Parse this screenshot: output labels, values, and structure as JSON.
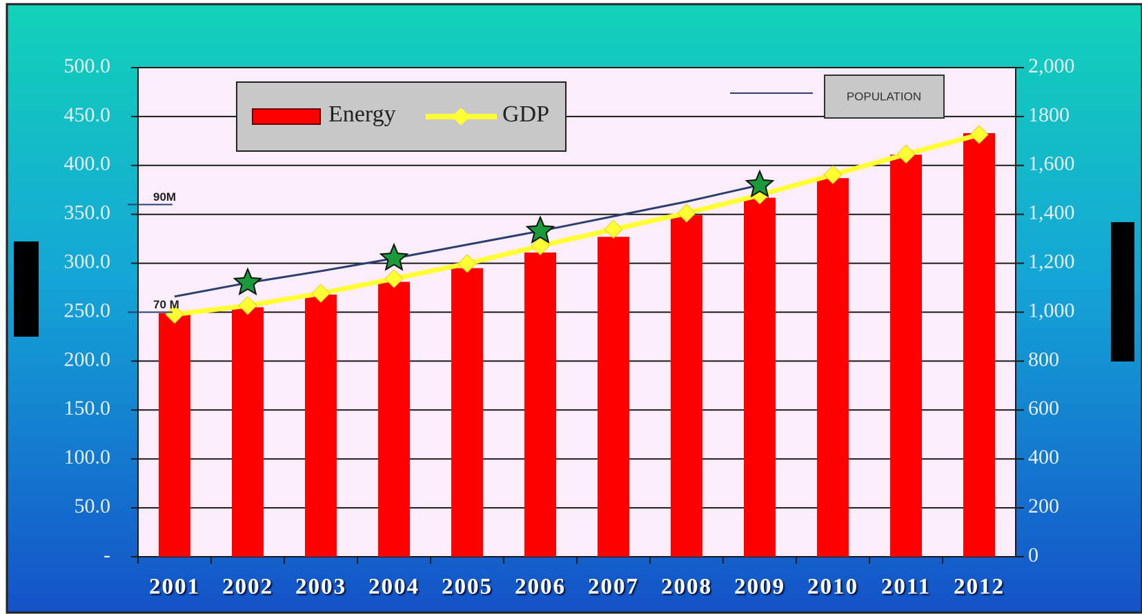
{
  "chart_data": {
    "type": "bar",
    "categories": [
      "2001",
      "2002",
      "2003",
      "2004",
      "2005",
      "2006",
      "2007",
      "2008",
      "2009",
      "2010",
      "2011",
      "2012"
    ],
    "series": [
      {
        "name": "Energy",
        "type": "bar",
        "color": "#ff0000",
        "axis": "y",
        "values": [
          249,
          255,
          268,
          281,
          295,
          311,
          327,
          349,
          367,
          387,
          411,
          433
        ]
      },
      {
        "name": "GDP",
        "type": "line",
        "color": "#ffff33",
        "axis": "y2",
        "values": [
          991,
          1027,
          1077,
          1137,
          1199,
          1271,
          1339,
          1405,
          1479,
          1562,
          1646,
          1726
        ]
      },
      {
        "name": "POPULATION",
        "type": "line",
        "color": "#2a3f6e",
        "axis": "y",
        "values": [
          266,
          280,
          292,
          305,
          319,
          333,
          348,
          363,
          380,
          null,
          null,
          null
        ]
      },
      {
        "type": "star",
        "color": "#1a9a3a",
        "axis": "y",
        "values": [
          null,
          280,
          null,
          305,
          null,
          333,
          null,
          null,
          380,
          null,
          null,
          null
        ]
      }
    ],
    "annotations": [
      {
        "text": "70 M",
        "y": 250
      },
      {
        "text": "90M",
        "y": 360
      }
    ],
    "ylim": [
      0,
      500
    ],
    "yticks": [
      {
        "value": 0,
        "label": "-"
      },
      {
        "value": 50,
        "label": "50.0"
      },
      {
        "value": 100,
        "label": "100.0"
      },
      {
        "value": 150,
        "label": "150.0"
      },
      {
        "value": 200,
        "label": "200.0"
      },
      {
        "value": 250,
        "label": "250.0"
      },
      {
        "value": 300,
        "label": "300.0"
      },
      {
        "value": 350,
        "label": "350.0"
      },
      {
        "value": 400,
        "label": "400.0"
      },
      {
        "value": 450,
        "label": "450.0"
      },
      {
        "value": 500,
        "label": "500.0"
      }
    ],
    "y2lim": [
      0,
      2000
    ],
    "y2ticks": [
      0,
      200,
      400,
      600,
      800,
      {
        "value": 1000,
        "label": "1,000"
      },
      {
        "value": 1200,
        "label": "1,200"
      },
      {
        "value": 1400,
        "label": "1,400"
      },
      {
        "value": 1600,
        "label": "1,600"
      },
      1800,
      {
        "value": 2000,
        "label": "2,000"
      }
    ],
    "grid": true
  }
}
